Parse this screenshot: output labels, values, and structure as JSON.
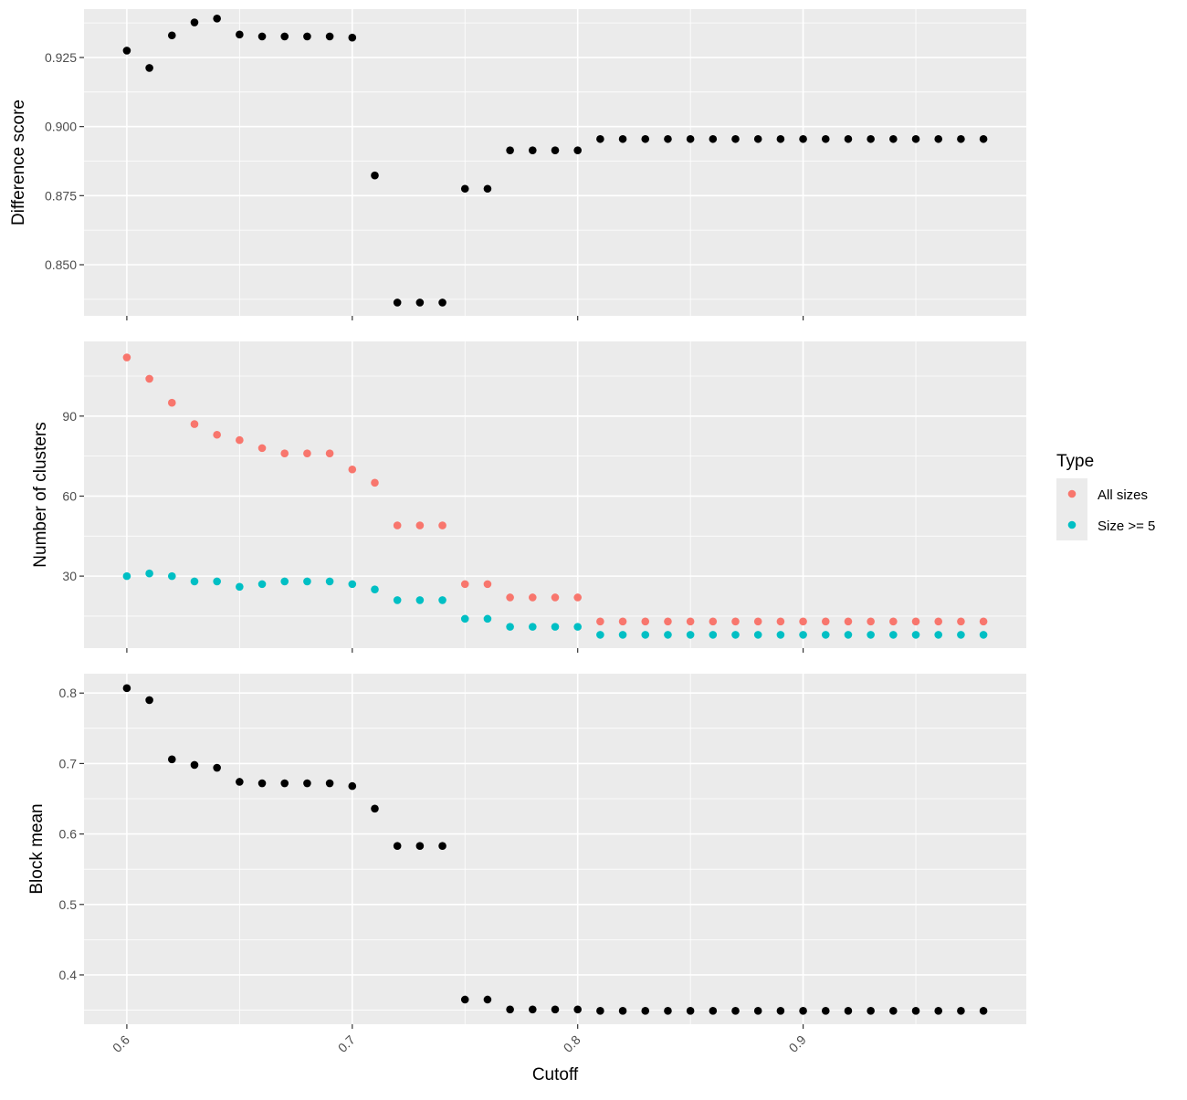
{
  "chart_data": {
    "type": "scatter",
    "layout": "faceted-vertical",
    "x_label": "Cutoff",
    "x_ticks": [
      0.6,
      0.7,
      0.8,
      0.9
    ],
    "x_tick_labels": [
      "0.6",
      "0.7",
      "0.8",
      "0.9"
    ],
    "xlim": [
      0.581,
      0.999
    ],
    "x": [
      0.6,
      0.61,
      0.62,
      0.63,
      0.64,
      0.65,
      0.66,
      0.67,
      0.68,
      0.69,
      0.7,
      0.71,
      0.72,
      0.73,
      0.74,
      0.75,
      0.76,
      0.77,
      0.78,
      0.79,
      0.8,
      0.81,
      0.82,
      0.83,
      0.84,
      0.85,
      0.86,
      0.87,
      0.88,
      0.89,
      0.9,
      0.91,
      0.92,
      0.93,
      0.94,
      0.95,
      0.96,
      0.97,
      0.98
    ],
    "grid": true,
    "panels": [
      {
        "ylabel": "Difference score",
        "ylim": [
          0.8315,
          0.9425
        ],
        "y_ticks": [
          0.85,
          0.875,
          0.9,
          0.925
        ],
        "y_tick_labels": [
          "0.850",
          "0.875",
          "0.900",
          "0.925"
        ],
        "series": [
          {
            "color": "#000000",
            "values": [
              0.9275,
              0.9212,
              0.933,
              0.9377,
              0.9391,
              0.9333,
              0.9326,
              0.9326,
              0.9326,
              0.9326,
              0.9322,
              0.8823,
              0.8363,
              0.8363,
              0.8363,
              0.8775,
              0.8775,
              0.8914,
              0.8914,
              0.8914,
              0.8914,
              0.8955,
              0.8955,
              0.8955,
              0.8955,
              0.8955,
              0.8955,
              0.8955,
              0.8955,
              0.8955,
              0.8955,
              0.8955,
              0.8955,
              0.8955,
              0.8955,
              0.8955,
              0.8955,
              0.8955,
              0.8955
            ]
          }
        ]
      },
      {
        "ylabel": "Number of clusters",
        "ylim": [
          3,
          118
        ],
        "y_ticks": [
          30,
          60,
          90
        ],
        "y_tick_labels": [
          "30",
          "60",
          "90"
        ],
        "series": [
          {
            "name": "All sizes",
            "color": "#F8766D",
            "values": [
              112,
              104,
              95,
              87,
              83,
              81,
              78,
              76,
              76,
              76,
              70,
              65,
              49,
              49,
              49,
              27,
              27,
              22,
              22,
              22,
              22,
              13,
              13,
              13,
              13,
              13,
              13,
              13,
              13,
              13,
              13,
              13,
              13,
              13,
              13,
              13,
              13,
              13,
              13
            ]
          },
          {
            "name": "Size >= 5",
            "color": "#00BFC4",
            "values": [
              30,
              31,
              30,
              28,
              28,
              26,
              27,
              28,
              28,
              28,
              27,
              25,
              21,
              21,
              21,
              14,
              14,
              11,
              11,
              11,
              11,
              8,
              8,
              8,
              8,
              8,
              8,
              8,
              8,
              8,
              8,
              8,
              8,
              8,
              8,
              8,
              8,
              8,
              8
            ]
          }
        ]
      },
      {
        "ylabel": "Block mean",
        "ylim": [
          0.33,
          0.8275
        ],
        "y_ticks": [
          0.4,
          0.5,
          0.6,
          0.7,
          0.8
        ],
        "y_tick_labels": [
          "0.4",
          "0.5",
          "0.6",
          "0.7",
          "0.8"
        ],
        "series": [
          {
            "color": "#000000",
            "values": [
              0.807,
              0.79,
              0.706,
              0.698,
              0.694,
              0.674,
              0.672,
              0.672,
              0.672,
              0.672,
              0.668,
              0.636,
              0.583,
              0.583,
              0.583,
              0.365,
              0.365,
              0.351,
              0.351,
              0.351,
              0.351,
              0.349,
              0.349,
              0.349,
              0.349,
              0.349,
              0.349,
              0.349,
              0.349,
              0.349,
              0.349,
              0.349,
              0.349,
              0.349,
              0.349,
              0.349,
              0.349,
              0.349,
              0.349
            ]
          }
        ]
      }
    ],
    "legend": {
      "title": "Type",
      "position": "right",
      "entries": [
        {
          "label": "All sizes",
          "color": "#F8766D"
        },
        {
          "label": "Size >= 5",
          "color": "#00BFC4"
        }
      ]
    }
  }
}
